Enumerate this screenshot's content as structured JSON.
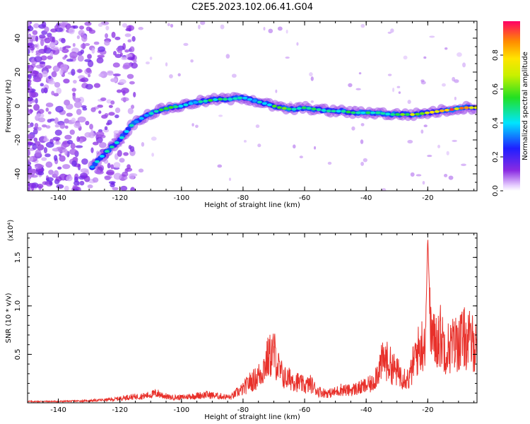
{
  "title": "C2E5.2023.102.06.41.G04",
  "chart_data": [
    {
      "type": "heatmap",
      "xlabel": "Height of straight line (km)",
      "ylabel": "Frequency (Hz)",
      "xlim": [
        -150,
        -4
      ],
      "ylim": [
        -50,
        50
      ],
      "x_ticks": [
        -140,
        -120,
        -100,
        -80,
        -60,
        -40,
        -20
      ],
      "x_tick_labels": [
        "-140",
        "-120",
        "-100",
        "-80",
        "-60",
        "-40",
        "-20"
      ],
      "y_ticks": [
        -40,
        -20,
        0,
        20,
        40
      ],
      "y_tick_labels": [
        "-40",
        "-20",
        "0",
        "20",
        "40"
      ],
      "colorbar": {
        "label": "Normalized spectral amplitude",
        "range": [
          0,
          1
        ],
        "ticks": [
          0.0,
          0.2,
          0.4,
          0.6,
          0.8
        ],
        "tick_labels": [
          "0.0",
          "0.2",
          "0.4",
          "0.6",
          "0.8"
        ]
      },
      "ridge": {
        "x": [
          -129,
          -125,
          -120,
          -116,
          -112,
          -108,
          -104,
          -100,
          -96,
          -92,
          -88,
          -84,
          -80,
          -76,
          -72,
          -68,
          -64,
          -60,
          -56,
          -52,
          -48,
          -44,
          -40,
          -36,
          -32,
          -28,
          -24,
          -20,
          -16,
          -12,
          -8,
          -4
        ],
        "y": [
          -36,
          -28,
          -20,
          -11,
          -6,
          -3,
          -1,
          0,
          2,
          3,
          4,
          4,
          5,
          3,
          1,
          -1,
          -2,
          -1,
          -2,
          -3,
          -3,
          -4,
          -4,
          -4,
          -5,
          -5,
          -5,
          -4,
          -3,
          -2,
          -1,
          -1
        ],
        "amplitude": [
          0.45,
          0.5,
          0.5,
          0.45,
          0.4,
          0.5,
          0.55,
          0.5,
          0.45,
          0.55,
          0.5,
          0.45,
          0.5,
          0.45,
          0.5,
          0.7,
          0.55,
          0.5,
          0.5,
          0.45,
          0.5,
          0.6,
          0.5,
          0.5,
          0.55,
          0.6,
          0.75,
          0.7,
          0.85,
          0.95,
          0.9,
          0.85
        ]
      }
    },
    {
      "type": "line",
      "xlabel": "Height of straight line (km)",
      "ylabel": "SNR (10 * v/v)",
      "y_multiplier": "(x10⁴)",
      "xlim": [
        -150,
        -4
      ],
      "ylim": [
        0,
        1.75
      ],
      "x_ticks": [
        -140,
        -120,
        -100,
        -80,
        -60,
        -40,
        -20
      ],
      "x_tick_labels": [
        "-140",
        "-120",
        "-100",
        "-80",
        "-60",
        "-40",
        "-20"
      ],
      "y_ticks": [
        0.5,
        1.0,
        1.5
      ],
      "y_tick_labels": [
        "0.5",
        "1.0",
        "1.5"
      ],
      "color": "#e8302a",
      "series": [
        {
          "x": [
            -150,
            -140,
            -130,
            -122,
            -118,
            -112,
            -108,
            -104,
            -100,
            -96,
            -92,
            -88,
            -84,
            -82,
            -80,
            -78,
            -76,
            -74,
            -72,
            -70,
            -68,
            -66,
            -64,
            -62,
            -60,
            -58,
            -56,
            -54,
            -52,
            -50,
            -48,
            -46,
            -44,
            -42,
            -40,
            -38,
            -36,
            -34,
            -32,
            -30,
            -28,
            -26,
            -24,
            -22,
            -20.5,
            -20,
            -19.5,
            -18,
            -16,
            -14,
            -12,
            -10,
            -8,
            -6,
            -4
          ],
          "values": [
            0.02,
            0.02,
            0.03,
            0.05,
            0.08,
            0.1,
            0.14,
            0.08,
            0.08,
            0.1,
            0.12,
            0.1,
            0.08,
            0.15,
            0.2,
            0.3,
            0.35,
            0.45,
            0.65,
            0.75,
            0.45,
            0.35,
            0.35,
            0.3,
            0.25,
            0.28,
            0.18,
            0.15,
            0.14,
            0.16,
            0.2,
            0.18,
            0.2,
            0.22,
            0.25,
            0.28,
            0.5,
            0.65,
            0.55,
            0.45,
            0.4,
            0.35,
            0.7,
            0.85,
            1.0,
            1.72,
            1.2,
            0.9,
            1.0,
            0.8,
            0.85,
            0.9,
            0.95,
            0.9,
            0.85
          ]
        }
      ]
    }
  ]
}
